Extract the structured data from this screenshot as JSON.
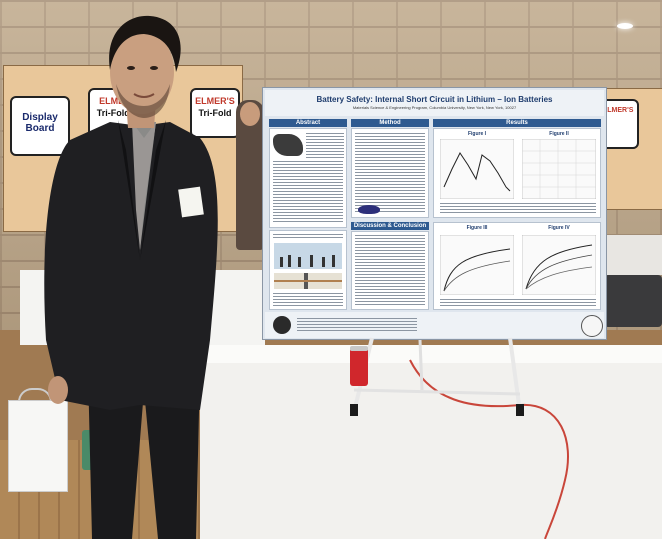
{
  "background_boards": {
    "left_label_a": "Display Board",
    "left_label_b": "ELMER'S",
    "left_label_b_sub": "Tri-Fold Di",
    "left_label_c": "ELMER'S",
    "left_label_c_sub": "Tri-Fold",
    "right_label": "ELMER'S"
  },
  "poster": {
    "title": "Battery Safety: Internal Short Circuit in Lithium – Ion Batteries",
    "subtitle": "Materials Science & Engineering Program, Columbia University, New York, New York, 10027",
    "columns": {
      "abstract": "Abstract",
      "method": "Method",
      "results": "Results",
      "discussion": "Discussion & Conclusion"
    },
    "figures": {
      "fig1": "Figure I",
      "fig2": "Figure II",
      "fig3": "Figure III",
      "fig4": "Figure IV"
    }
  },
  "colors": {
    "poster_accent": "#2e5a90",
    "jacket": "#1c1c1e",
    "can": "#d0272c",
    "cable": "#c9463a"
  }
}
